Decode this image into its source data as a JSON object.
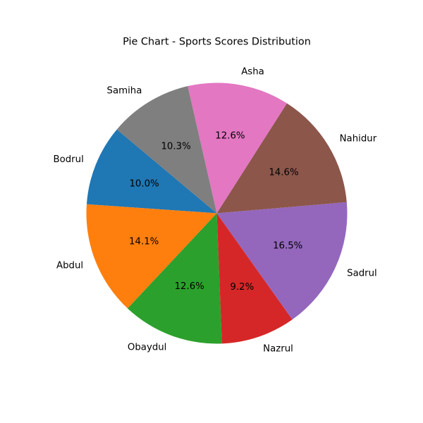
{
  "chart_data": {
    "type": "pie",
    "title": "Pie Chart - Sports Scores Distribution",
    "start_angle_deg": 140,
    "direction": "counterclockwise",
    "slices": [
      {
        "label": "Bodrul",
        "percent": 10.0,
        "pct_label": "10.0%",
        "color": "#1f77b4"
      },
      {
        "label": "Abdul",
        "percent": 14.1,
        "pct_label": "14.1%",
        "color": "#ff7f0e"
      },
      {
        "label": "Obaydul",
        "percent": 12.6,
        "pct_label": "12.6%",
        "color": "#2ca02c"
      },
      {
        "label": "Nazrul",
        "percent": 9.2,
        "pct_label": "9.2%",
        "color": "#d62728"
      },
      {
        "label": "Sadrul",
        "percent": 16.5,
        "pct_label": "16.5%",
        "color": "#9467bd"
      },
      {
        "label": "Nahidur",
        "percent": 14.6,
        "pct_label": "14.6%",
        "color": "#8c564b"
      },
      {
        "label": "Asha",
        "percent": 12.6,
        "pct_label": "12.6%",
        "color": "#e377c2"
      },
      {
        "label": "Samiha",
        "percent": 10.3,
        "pct_label": "10.3%",
        "color": "#7f7f7f"
      }
    ]
  }
}
